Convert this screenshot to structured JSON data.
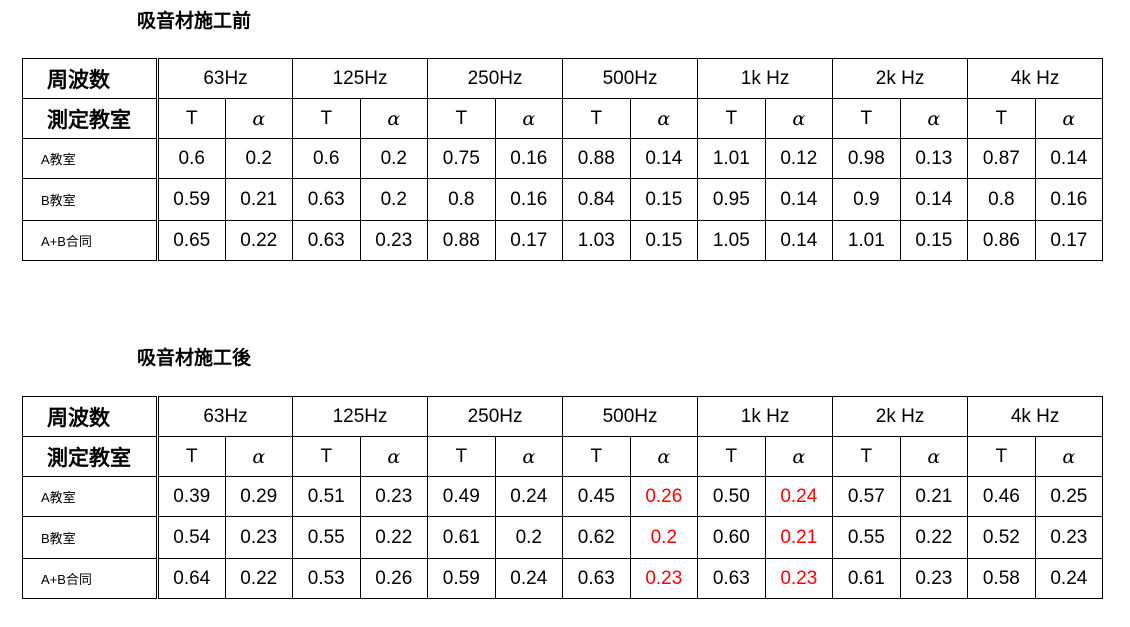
{
  "tables": [
    {
      "title": "吸音材施工前",
      "header": {
        "label": "周波数",
        "frequencies": [
          "63Hz",
          "125Hz",
          "250Hz",
          "500Hz",
          "1k Hz",
          "2k Hz",
          "4k Hz"
        ]
      },
      "subheader": {
        "label": "測定教室",
        "columns": [
          "T",
          "α",
          "T",
          "α",
          "T",
          "α",
          "T",
          "α",
          "T",
          "α",
          "T",
          "α",
          "T",
          "α"
        ]
      },
      "rows": [
        {
          "label": "A教室",
          "cells": [
            "0.6",
            "0.2",
            "0.6",
            "0.2",
            "0.75",
            "0.16",
            "0.88",
            "0.14",
            "1.01",
            "0.12",
            "0.98",
            "0.13",
            "0.87",
            "0.14"
          ]
        },
        {
          "label": "B教室",
          "cells": [
            "0.59",
            "0.21",
            "0.63",
            "0.2",
            "0.8",
            "0.16",
            "0.84",
            "0.15",
            "0.95",
            "0.14",
            "0.9",
            "0.14",
            "0.8",
            "0.16"
          ]
        },
        {
          "label": "A+B合同",
          "cells": [
            "0.65",
            "0.22",
            "0.63",
            "0.23",
            "0.88",
            "0.17",
            "1.03",
            "0.15",
            "1.05",
            "0.14",
            "1.01",
            "0.15",
            "0.86",
            "0.17"
          ]
        }
      ]
    },
    {
      "title": "吸音材施工後",
      "header": {
        "label": "周波数",
        "frequencies": [
          "63Hz",
          "125Hz",
          "250Hz",
          "500Hz",
          "1k Hz",
          "2k Hz",
          "4k Hz"
        ]
      },
      "subheader": {
        "label": "測定教室",
        "columns": [
          "T",
          "α",
          "T",
          "α",
          "T",
          "α",
          "T",
          "α",
          "T",
          "α",
          "T",
          "α",
          "T",
          "α"
        ]
      },
      "rows": [
        {
          "label": "A教室",
          "cells": [
            "0.39",
            "0.29",
            "0.51",
            "0.23",
            "0.49",
            "0.24",
            "0.45",
            {
              "text": "0.26",
              "color": "#ff0000"
            },
            "0.50",
            {
              "text": "0.24",
              "color": "#ff0000"
            },
            "0.57",
            "0.21",
            "0.46",
            "0.25"
          ]
        },
        {
          "label": "B教室",
          "cells": [
            "0.54",
            "0.23",
            "0.55",
            "0.22",
            "0.61",
            "0.2",
            "0.62",
            {
              "text": "0.2",
              "color": "#ff0000"
            },
            "0.60",
            {
              "text": "0.21",
              "color": "#ff0000"
            },
            "0.55",
            "0.22",
            "0.52",
            "0.23"
          ]
        },
        {
          "label": "A+B合同",
          "cells": [
            "0.64",
            "0.22",
            "0.53",
            "0.26",
            "0.59",
            "0.24",
            "0.63",
            {
              "text": "0.23",
              "color": "#ff0000"
            },
            "0.63",
            {
              "text": "0.23",
              "color": "#ff0000"
            },
            "0.61",
            "0.23",
            "0.58",
            "0.24"
          ]
        }
      ]
    }
  ]
}
